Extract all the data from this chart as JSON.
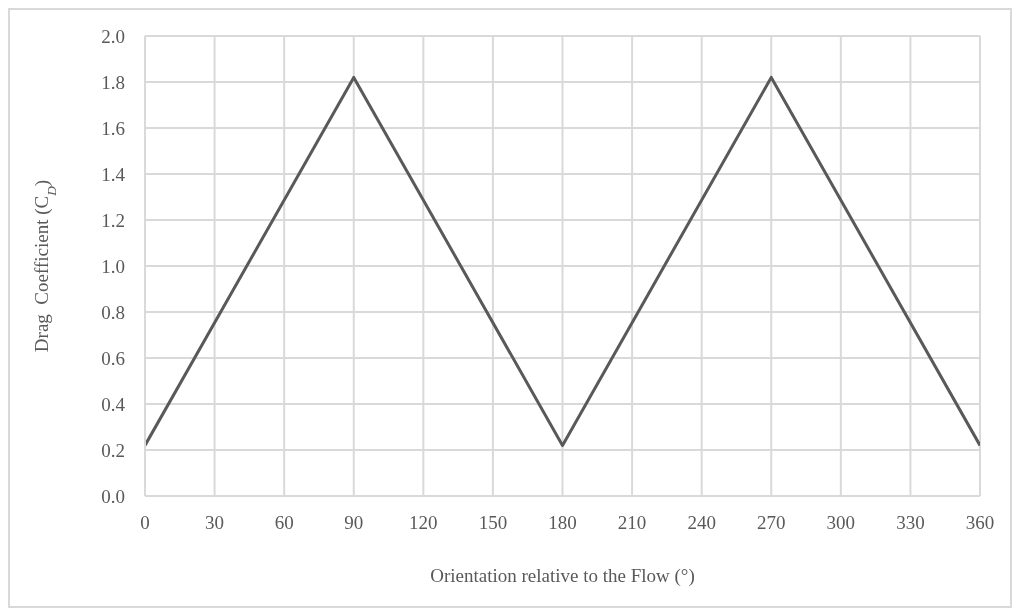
{
  "chart_data": {
    "type": "line",
    "xlabel": "Orientation relative to the Flow (°)",
    "ylabel": "Drag  Coefficient (C$_{D}$)",
    "x": [
      0,
      90,
      180,
      270,
      360
    ],
    "series": [
      {
        "color": "#595959",
        "values": [
          0.22,
          1.82,
          0.22,
          1.82,
          0.22
        ]
      }
    ],
    "xlim": [
      0,
      360
    ],
    "xticks": [
      0,
      30,
      60,
      90,
      120,
      150,
      180,
      210,
      240,
      270,
      300,
      330,
      360
    ],
    "ylim": [
      0,
      2
    ],
    "yticks": [
      {
        "value": 0,
        "label": "0.0"
      },
      {
        "value": 0.2,
        "label": "0.2"
      },
      {
        "value": 0.4,
        "label": "0.4"
      },
      {
        "value": 0.6,
        "label": "0.6"
      },
      {
        "value": 0.8,
        "label": "0.8"
      },
      {
        "value": 1,
        "label": "1.0"
      },
      {
        "value": 1.2,
        "label": "1.2"
      },
      {
        "value": 1.4,
        "label": "1.4"
      },
      {
        "value": 1.6,
        "label": "1.6"
      },
      {
        "value": 1.8,
        "label": "1.8"
      },
      {
        "value": 2,
        "label": "2.0"
      }
    ],
    "grid": true,
    "marker": "none",
    "line_style": "solid",
    "legend": false
  }
}
